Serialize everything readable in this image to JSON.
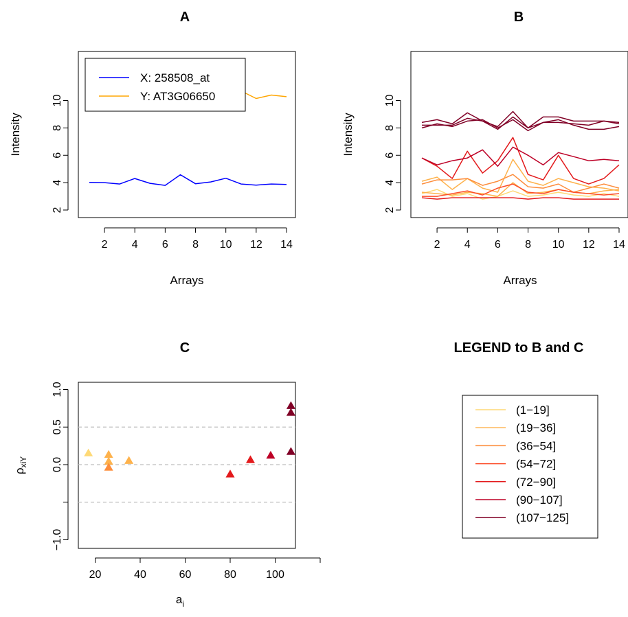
{
  "chart_data": [
    {
      "panel": "A",
      "type": "line",
      "title": "A",
      "xlabel": "Arrays",
      "ylabel": "Intensity",
      "xlim": [
        1,
        14
      ],
      "ylim": [
        2,
        11
      ],
      "xticks": [
        2,
        4,
        6,
        8,
        10,
        12,
        14
      ],
      "yticks": [
        2,
        4,
        6,
        8,
        10
      ],
      "legend_position": "top-left",
      "x": [
        1,
        2,
        3,
        4,
        5,
        6,
        7,
        8,
        9,
        10,
        11,
        12,
        13,
        14
      ],
      "series": [
        {
          "name": "X: 258508_at",
          "color": "#0000ff",
          "values": [
            4.02,
            4.0,
            3.9,
            4.3,
            3.95,
            3.8,
            4.58,
            3.92,
            4.05,
            4.32,
            3.9,
            3.82,
            3.9,
            3.87
          ]
        },
        {
          "name": "Y: AT3G06650",
          "color": "#ffa500",
          "values": [
            9.5,
            9.98,
            9.8,
            10.2,
            10.28,
            9.48,
            10.28,
            9.42,
            11.05,
            10.7,
            10.7,
            10.15,
            10.4,
            10.28
          ]
        }
      ]
    },
    {
      "panel": "B",
      "type": "line",
      "title": "B",
      "xlabel": "Arrays",
      "ylabel": "Intensity",
      "xlim": [
        1,
        14
      ],
      "ylim": [
        2,
        11
      ],
      "xticks": [
        2,
        4,
        6,
        8,
        10,
        12,
        14
      ],
      "yticks": [
        2,
        4,
        6,
        8,
        10
      ],
      "x": [
        1,
        2,
        3,
        4,
        5,
        6,
        7,
        8,
        9,
        10,
        11,
        12,
        13,
        14
      ],
      "series": [
        {
          "color": "#fed976",
          "values": [
            3.2,
            3.5,
            3.0,
            3.2,
            2.8,
            3.0,
            3.4,
            3.0,
            3.1,
            3.3,
            3.1,
            3.0,
            3.2,
            3.0
          ]
        },
        {
          "color": "#feb24c",
          "values": [
            3.3,
            3.2,
            3.1,
            3.3,
            3.2,
            3.0,
            4.0,
            3.2,
            3.3,
            3.5,
            3.3,
            3.2,
            3.4,
            3.5
          ]
        },
        {
          "color": "#feb24c",
          "values": [
            4.1,
            4.4,
            3.5,
            4.3,
            3.6,
            3.3,
            5.7,
            4.1,
            3.8,
            4.3,
            4.0,
            3.7,
            3.6,
            3.4
          ]
        },
        {
          "color": "#fd8d3c",
          "values": [
            3.9,
            4.2,
            4.2,
            4.3,
            3.8,
            4.1,
            4.6,
            3.7,
            3.6,
            3.9,
            3.3,
            3.6,
            3.9,
            3.6
          ]
        },
        {
          "color": "#fc4e2a",
          "values": [
            3.0,
            3.0,
            3.2,
            3.4,
            3.1,
            3.6,
            3.9,
            3.3,
            3.2,
            3.5,
            3.3,
            3.2,
            3.1,
            3.2
          ]
        },
        {
          "color": "#e31a1c",
          "values": [
            2.9,
            2.8,
            2.9,
            2.9,
            2.9,
            2.9,
            2.9,
            2.8,
            2.9,
            2.9,
            2.8,
            2.8,
            2.8,
            2.8
          ]
        },
        {
          "color": "#e31a1c",
          "values": [
            5.8,
            5.2,
            4.3,
            6.3,
            4.7,
            5.6,
            7.3,
            4.6,
            4.2,
            6.0,
            4.3,
            3.9,
            4.3,
            5.3
          ]
        },
        {
          "color": "#bd0026",
          "values": [
            5.8,
            5.3,
            5.6,
            5.8,
            6.4,
            5.2,
            6.6,
            6.0,
            5.3,
            6.2,
            5.9,
            5.6,
            5.7,
            5.6
          ]
        },
        {
          "color": "#800026",
          "values": [
            8.0,
            8.3,
            8.1,
            8.5,
            8.6,
            8.0,
            8.6,
            7.8,
            8.4,
            8.4,
            8.3,
            8.2,
            8.5,
            8.4
          ]
        },
        {
          "color": "#800026",
          "values": [
            8.2,
            8.2,
            8.2,
            8.7,
            8.5,
            7.9,
            8.8,
            8.0,
            8.8,
            8.8,
            8.5,
            8.5,
            8.5,
            8.3
          ]
        },
        {
          "color": "#800026",
          "values": [
            8.4,
            8.6,
            8.3,
            9.1,
            8.5,
            8.1,
            9.2,
            8.0,
            8.4,
            8.6,
            8.2,
            7.9,
            7.9,
            8.1
          ]
        }
      ]
    },
    {
      "panel": "C",
      "type": "scatter",
      "title": "C",
      "xlabel": "a",
      "xlabel_sub": "i",
      "ylabel": "ρ",
      "ylabel_sub": "xiY",
      "xlim": [
        10,
        120
      ],
      "ylim": [
        -1.0,
        1.0
      ],
      "xticks": [
        20,
        40,
        60,
        80,
        100
      ],
      "yticks": [
        -1.0,
        -0.5,
        0.0,
        0.5,
        1.0
      ],
      "ytick_labels": [
        "−1.0",
        "",
        "0.0",
        "0.5",
        "1.0"
      ],
      "hlines": [
        -0.5,
        0.0,
        0.5
      ],
      "points": [
        {
          "x": 17,
          "y": 0.15,
          "color": "#fed976"
        },
        {
          "x": 26,
          "y": 0.13,
          "color": "#feb24c"
        },
        {
          "x": 26,
          "y": 0.04,
          "color": "#feb24c"
        },
        {
          "x": 26,
          "y": -0.04,
          "color": "#fd8d3c"
        },
        {
          "x": 35,
          "y": 0.05,
          "color": "#feb24c"
        },
        {
          "x": 80,
          "y": -0.13,
          "color": "#e31a1c"
        },
        {
          "x": 89,
          "y": 0.06,
          "color": "#e31a1c"
        },
        {
          "x": 98,
          "y": 0.12,
          "color": "#bd0026"
        },
        {
          "x": 107,
          "y": 0.17,
          "color": "#800026"
        },
        {
          "x": 107,
          "y": 0.69,
          "color": "#800026"
        },
        {
          "x": 107,
          "y": 0.78,
          "color": "#800026"
        }
      ]
    }
  ],
  "legend_bc": {
    "title": "LEGEND to B and C",
    "items": [
      {
        "label": "(1−19]",
        "color": "#fed976"
      },
      {
        "label": "(19−36]",
        "color": "#feb24c"
      },
      {
        "label": "(36−54]",
        "color": "#fd8d3c"
      },
      {
        "label": "(54−72]",
        "color": "#fc4e2a"
      },
      {
        "label": "(72−90]",
        "color": "#e31a1c"
      },
      {
        "label": "(90−107]",
        "color": "#bd0026"
      },
      {
        "label": "(107−125]",
        "color": "#800026"
      }
    ]
  }
}
